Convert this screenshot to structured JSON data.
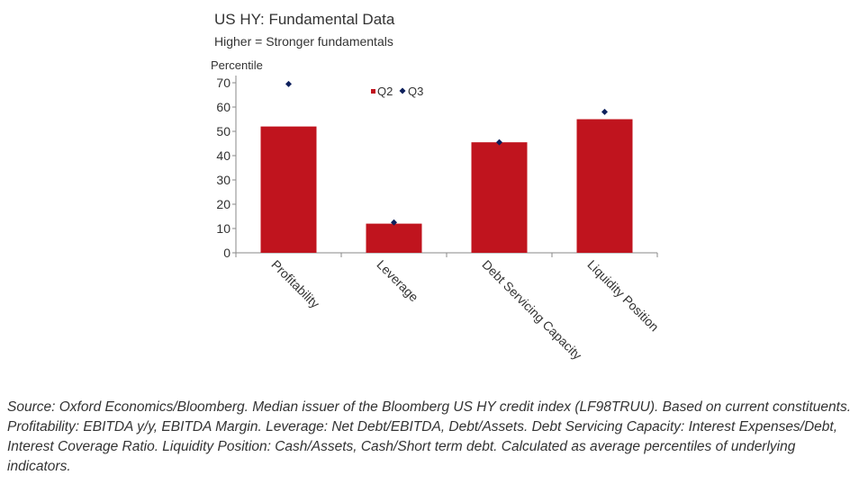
{
  "header": {
    "title": "US HY: Fundamental Data",
    "subtitle": "Higher = Stronger fundamentals"
  },
  "chart_data": {
    "type": "bar",
    "ylabel": "Percentile",
    "ylim": [
      0,
      70
    ],
    "yticks": [
      0,
      10,
      20,
      30,
      40,
      50,
      60,
      70
    ],
    "categories": [
      "Profitability",
      "Leverage",
      "Debt Servicing Capacity",
      "Liquidity Position"
    ],
    "series": [
      {
        "name": "Q2",
        "type": "bar",
        "color": "#c0141e",
        "values": [
          52,
          12,
          45.5,
          55
        ]
      },
      {
        "name": "Q3",
        "type": "scatter",
        "marker": "diamond",
        "color": "#0d1f5c",
        "values": [
          69.5,
          12.5,
          45.5,
          58
        ]
      }
    ],
    "legend_position": "top-left of plot area",
    "grid": false
  },
  "footer": {
    "source": "Source: Oxford Economics/Bloomberg. Median issuer of the Bloomberg US HY credit index (LF98TRUU). Based on current constituents. Profitability: EBITDA y/y, EBITDA Margin. Leverage: Net Debt/EBITDA, Debt/Assets. Debt Servicing Capacity: Interest Expenses/Debt, Interest Coverage Ratio. Liquidity Position: Cash/Assets, Cash/Short term debt. Calculated as average percentiles of underlying indicators."
  }
}
